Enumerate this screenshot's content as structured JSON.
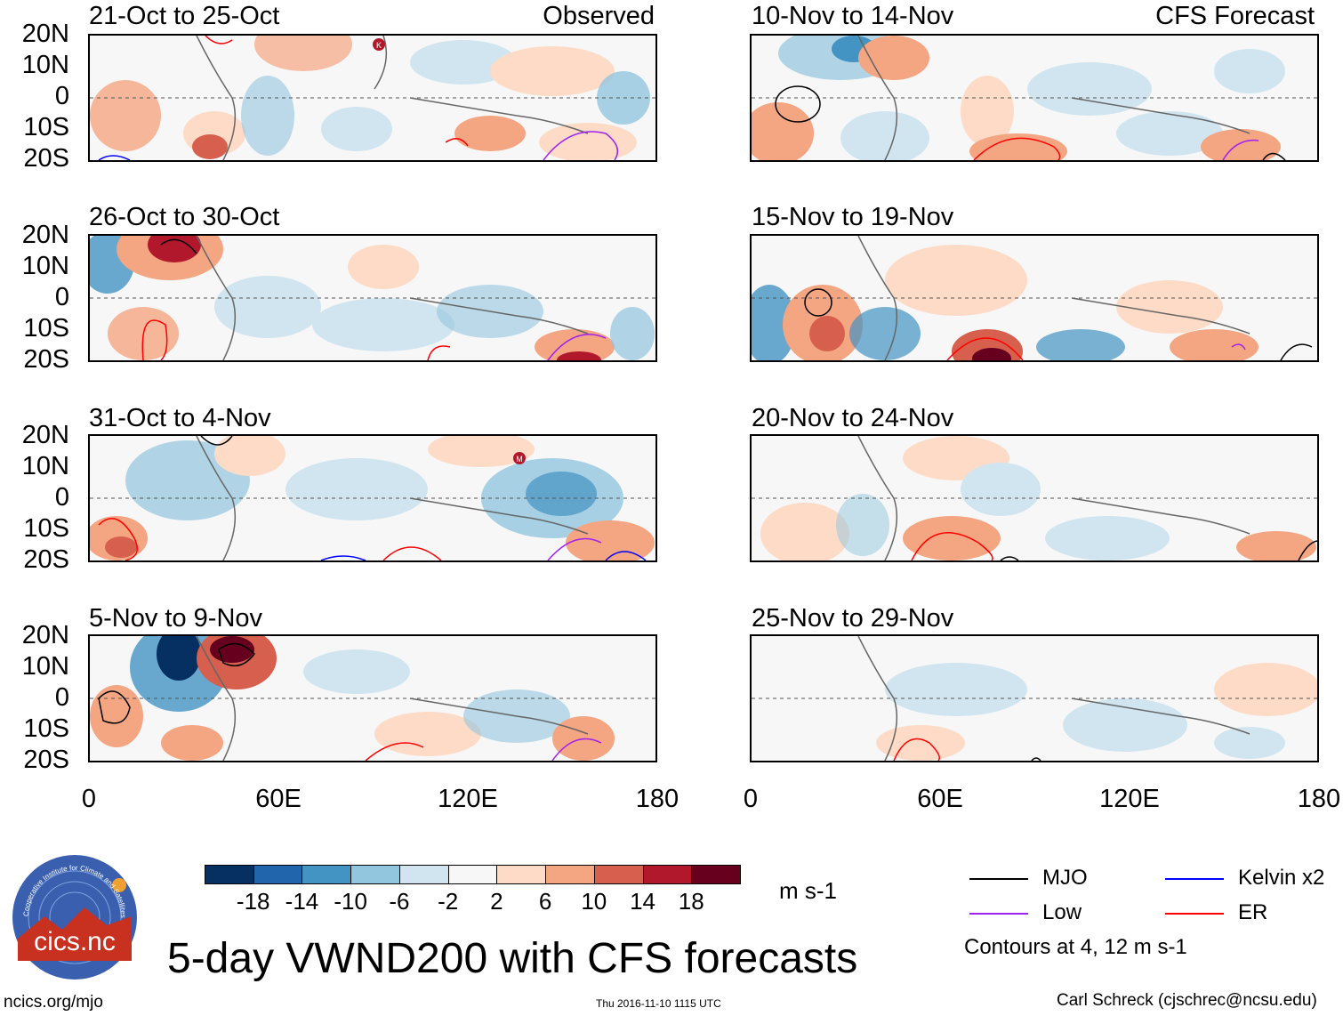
{
  "headers": {
    "left": "Observed",
    "right": "CFS Forecast"
  },
  "panels": {
    "left": [
      {
        "title": "21-Oct to 25-Oct"
      },
      {
        "title": "26-Oct to 30-Oct"
      },
      {
        "title": "31-Oct to 4-Nov"
      },
      {
        "title": "5-Nov to 9-Nov"
      }
    ],
    "right": [
      {
        "title": "10-Nov to 14-Nov"
      },
      {
        "title": "15-Nov to 19-Nov"
      },
      {
        "title": "20-Nov to 24-Nov"
      },
      {
        "title": "25-Nov to 29-Nov"
      }
    ]
  },
  "axes": {
    "y_ticks": [
      "20N",
      "10N",
      "0",
      "10S",
      "20S"
    ],
    "x_ticks": [
      "0",
      "60E",
      "120E",
      "180"
    ]
  },
  "storm_markers": {
    "k": "K",
    "m": "M"
  },
  "colorbar": {
    "colors": [
      "#053061",
      "#2166ac",
      "#4393c3",
      "#92c5de",
      "#d1e5f0",
      "#f7f7f7",
      "#fddbc7",
      "#f4a582",
      "#d6604d",
      "#b2182b",
      "#67001f"
    ],
    "ticks": [
      "-18",
      "-14",
      "-10",
      "-6",
      "-2",
      "2",
      "6",
      "10",
      "14",
      "18"
    ],
    "units": "m s-1"
  },
  "legend": {
    "items": [
      {
        "label": "MJO",
        "color": "#000000"
      },
      {
        "label": "Kelvin x2",
        "color": "#0000ff"
      },
      {
        "label": "Low",
        "color": "#a020f0"
      },
      {
        "label": "ER",
        "color": "#ff0000"
      }
    ],
    "note": "Contours at 4, 12 m s-1"
  },
  "logo": {
    "text": "cics.nc",
    "ring_text": "Cooperative Institute for Climate and Satellites"
  },
  "title": "5-day VWND200 with CFS forecasts",
  "footer": {
    "url": "ncics.org/mjo",
    "timestamp": "Thu 2016-11-10 1115 UTC",
    "credit": "Carl Schreck (cjschrec@ncsu.edu)"
  }
}
